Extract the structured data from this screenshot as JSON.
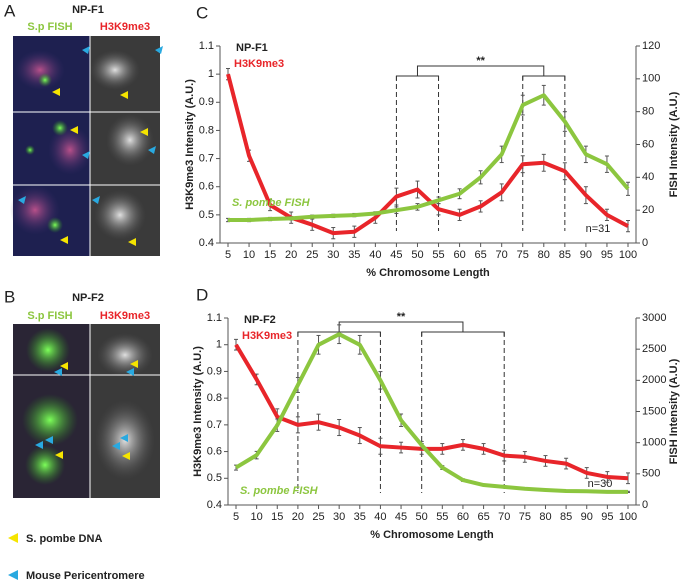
{
  "figure": {
    "panel_letters": [
      "A",
      "B",
      "C",
      "D"
    ],
    "panel_a": {
      "title": "NP-F1",
      "channel_1": "S.p FISH",
      "channel_2": "H3K9me3"
    },
    "panel_b": {
      "title": "NP-F2",
      "channel_1": "S.p FISH",
      "channel_2": "H3K9me3"
    },
    "legend": [
      "S. pombe DNA",
      "Mouse Pericentromere"
    ]
  },
  "chart_data": [
    {
      "type": "line",
      "title": "NP-F1",
      "x_label": "% Chromosome Length",
      "y_label": "H3K9me3 Intensity (A.U.)",
      "y2_label": "FISH Intensity (A.U.)",
      "x": [
        5,
        10,
        15,
        20,
        25,
        30,
        35,
        40,
        45,
        50,
        55,
        60,
        65,
        70,
        75,
        80,
        85,
        90,
        95,
        100
      ],
      "xlim": [
        5,
        100
      ],
      "xticks": [
        5,
        10,
        15,
        20,
        25,
        30,
        35,
        40,
        45,
        50,
        55,
        60,
        65,
        70,
        75,
        80,
        85,
        90,
        95,
        100
      ],
      "ylim": [
        0.4,
        1.1
      ],
      "yticks": [
        0.4,
        0.5,
        0.6,
        0.7,
        0.8,
        0.9,
        1,
        1.1
      ],
      "y2lim": [
        0,
        120
      ],
      "y2ticks": [
        0,
        20,
        40,
        60,
        80,
        100,
        120
      ],
      "annotations": [
        "**",
        "n=31"
      ],
      "series": [
        {
          "name": "H3K9me3",
          "color": "#e8252a",
          "values": [
            1.0,
            0.71,
            0.535,
            0.49,
            0.465,
            0.435,
            0.44,
            0.49,
            0.565,
            0.59,
            0.52,
            0.5,
            0.53,
            0.58,
            0.68,
            0.685,
            0.655,
            0.57,
            0.5,
            0.46
          ],
          "errors": [
            0.02,
            0.02,
            0.02,
            0.02,
            0.02,
            0.02,
            0.02,
            0.02,
            0.03,
            0.03,
            0.02,
            0.02,
            0.02,
            0.03,
            0.03,
            0.03,
            0.03,
            0.03,
            0.02,
            0.02
          ]
        },
        {
          "name": "S. pombe FISH",
          "color": "#8cc63f",
          "axis": "y2",
          "values": [
            14,
            14,
            14.6,
            15,
            16,
            16.5,
            17,
            18,
            20,
            22,
            26,
            30,
            40,
            54,
            84,
            90,
            74,
            54,
            48,
            33
          ],
          "errors": [
            1,
            1,
            1,
            1,
            1,
            1,
            1,
            1,
            2,
            2,
            2,
            3,
            4,
            5,
            6,
            6,
            6,
            5,
            5,
            4
          ]
        }
      ]
    },
    {
      "type": "line",
      "title": "NP-F2",
      "x_label": "% Chromosome Length",
      "y_label": "H3K9me3 Intensity (A.U.)",
      "y2_label": "FISH Intensity (A.U.)",
      "x": [
        5,
        10,
        15,
        20,
        25,
        30,
        35,
        40,
        45,
        50,
        55,
        60,
        65,
        70,
        75,
        80,
        85,
        90,
        95,
        100
      ],
      "xlim": [
        5,
        100
      ],
      "xticks": [
        5,
        10,
        15,
        20,
        25,
        30,
        35,
        40,
        45,
        50,
        55,
        60,
        65,
        70,
        75,
        80,
        85,
        90,
        95,
        100
      ],
      "ylim": [
        0.4,
        1.1
      ],
      "yticks": [
        0.4,
        0.5,
        0.6,
        0.7,
        0.8,
        0.9,
        1,
        1.1
      ],
      "y2lim": [
        0,
        3000
      ],
      "y2ticks": [
        0,
        500,
        1000,
        1500,
        2000,
        2500,
        3000
      ],
      "annotations": [
        "**",
        "n=30"
      ],
      "series": [
        {
          "name": "H3K9me3",
          "color": "#e8252a",
          "values": [
            1.0,
            0.87,
            0.73,
            0.7,
            0.71,
            0.69,
            0.66,
            0.62,
            0.615,
            0.61,
            0.61,
            0.625,
            0.61,
            0.585,
            0.58,
            0.565,
            0.555,
            0.52,
            0.505,
            0.5
          ],
          "errors": [
            0.02,
            0.02,
            0.03,
            0.03,
            0.03,
            0.03,
            0.03,
            0.03,
            0.02,
            0.02,
            0.02,
            0.02,
            0.02,
            0.02,
            0.02,
            0.02,
            0.02,
            0.02,
            0.02,
            0.02
          ]
        },
        {
          "name": "S. pombe FISH",
          "color": "#8cc63f",
          "axis": "y2",
          "values": [
            600,
            800,
            1280,
            1925,
            2570,
            2740,
            2570,
            2000,
            1360,
            960,
            600,
            400,
            320,
            290,
            260,
            240,
            225,
            220,
            210,
            210
          ],
          "errors": [
            40,
            60,
            100,
            120,
            150,
            150,
            150,
            140,
            100,
            60,
            30,
            20,
            15,
            15,
            10,
            10,
            10,
            10,
            10,
            10
          ]
        }
      ]
    }
  ]
}
